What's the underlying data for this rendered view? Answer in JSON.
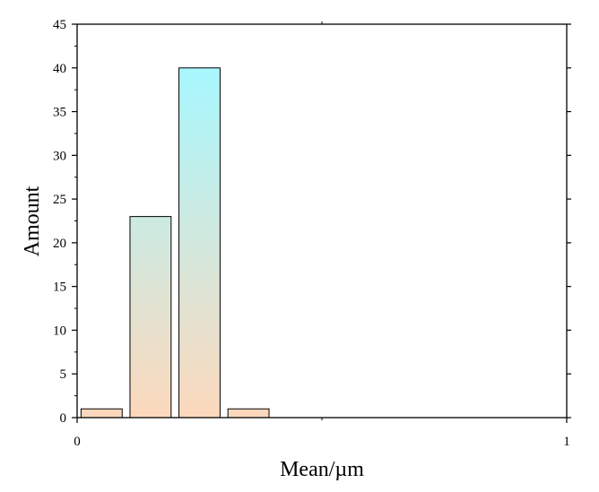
{
  "chart_data": {
    "type": "bar",
    "title": "",
    "xlabel": "Mean/µm",
    "ylabel": "Amount",
    "xlim": [
      0,
      1
    ],
    "ylim": [
      0,
      45
    ],
    "x_ticks": [
      "0",
      "1"
    ],
    "y_ticks": [
      "0",
      "5",
      "10",
      "15",
      "20",
      "25",
      "30",
      "35",
      "40",
      "45"
    ],
    "bins": [
      {
        "x_start": 0.0,
        "x_end": 0.1,
        "value": 1
      },
      {
        "x_start": 0.1,
        "x_end": 0.2,
        "value": 23
      },
      {
        "x_start": 0.2,
        "x_end": 0.3,
        "value": 40
      },
      {
        "x_start": 0.3,
        "x_end": 0.4,
        "value": 1
      }
    ],
    "bar_gradient": {
      "top": "#a8f8ff",
      "bottom": "#fcd8bc"
    },
    "bar_outline": "#000000",
    "grid": false,
    "legend": "none"
  }
}
